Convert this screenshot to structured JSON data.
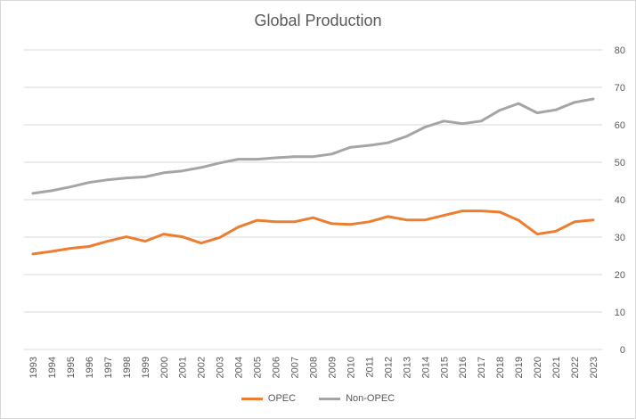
{
  "chart_data": {
    "type": "line",
    "title": "Global Production",
    "xlabel": "",
    "ylabel": "",
    "ylim": [
      0,
      80
    ],
    "yticks": [
      0,
      10,
      20,
      30,
      40,
      50,
      60,
      70,
      80
    ],
    "y_axis_position": "right",
    "grid": true,
    "legend_position": "bottom",
    "categories": [
      "1993",
      "1994",
      "1995",
      "1996",
      "1997",
      "1998",
      "1999",
      "2000",
      "2001",
      "2002",
      "2003",
      "2004",
      "2005",
      "2006",
      "2007",
      "2008",
      "2009",
      "2010",
      "2011",
      "2012",
      "2013",
      "2014",
      "2015",
      "2016",
      "2017",
      "2018",
      "2019",
      "2020",
      "2021",
      "2022",
      "2023"
    ],
    "series": [
      {
        "name": "OPEC",
        "color": "#ed7d31",
        "values": [
          25.5,
          26.2,
          27.0,
          27.5,
          28.9,
          30.1,
          28.9,
          30.8,
          30.1,
          28.4,
          29.9,
          32.7,
          34.5,
          34.1,
          34.1,
          35.2,
          33.6,
          33.4,
          34.1,
          35.5,
          34.6,
          34.6,
          35.8,
          37.0,
          37.0,
          36.7,
          34.5,
          30.8,
          31.6,
          34.1,
          34.6
        ]
      },
      {
        "name": "Non-OPEC",
        "color": "#a5a5a5",
        "values": [
          41.7,
          42.4,
          43.4,
          44.6,
          45.3,
          45.8,
          46.1,
          47.2,
          47.7,
          48.6,
          49.8,
          50.8,
          50.8,
          51.2,
          51.5,
          51.5,
          52.2,
          54.0,
          54.5,
          55.2,
          56.9,
          59.4,
          61.0,
          60.3,
          61.0,
          63.9,
          65.7,
          63.2,
          64.0,
          66.0,
          66.9
        ]
      }
    ]
  }
}
